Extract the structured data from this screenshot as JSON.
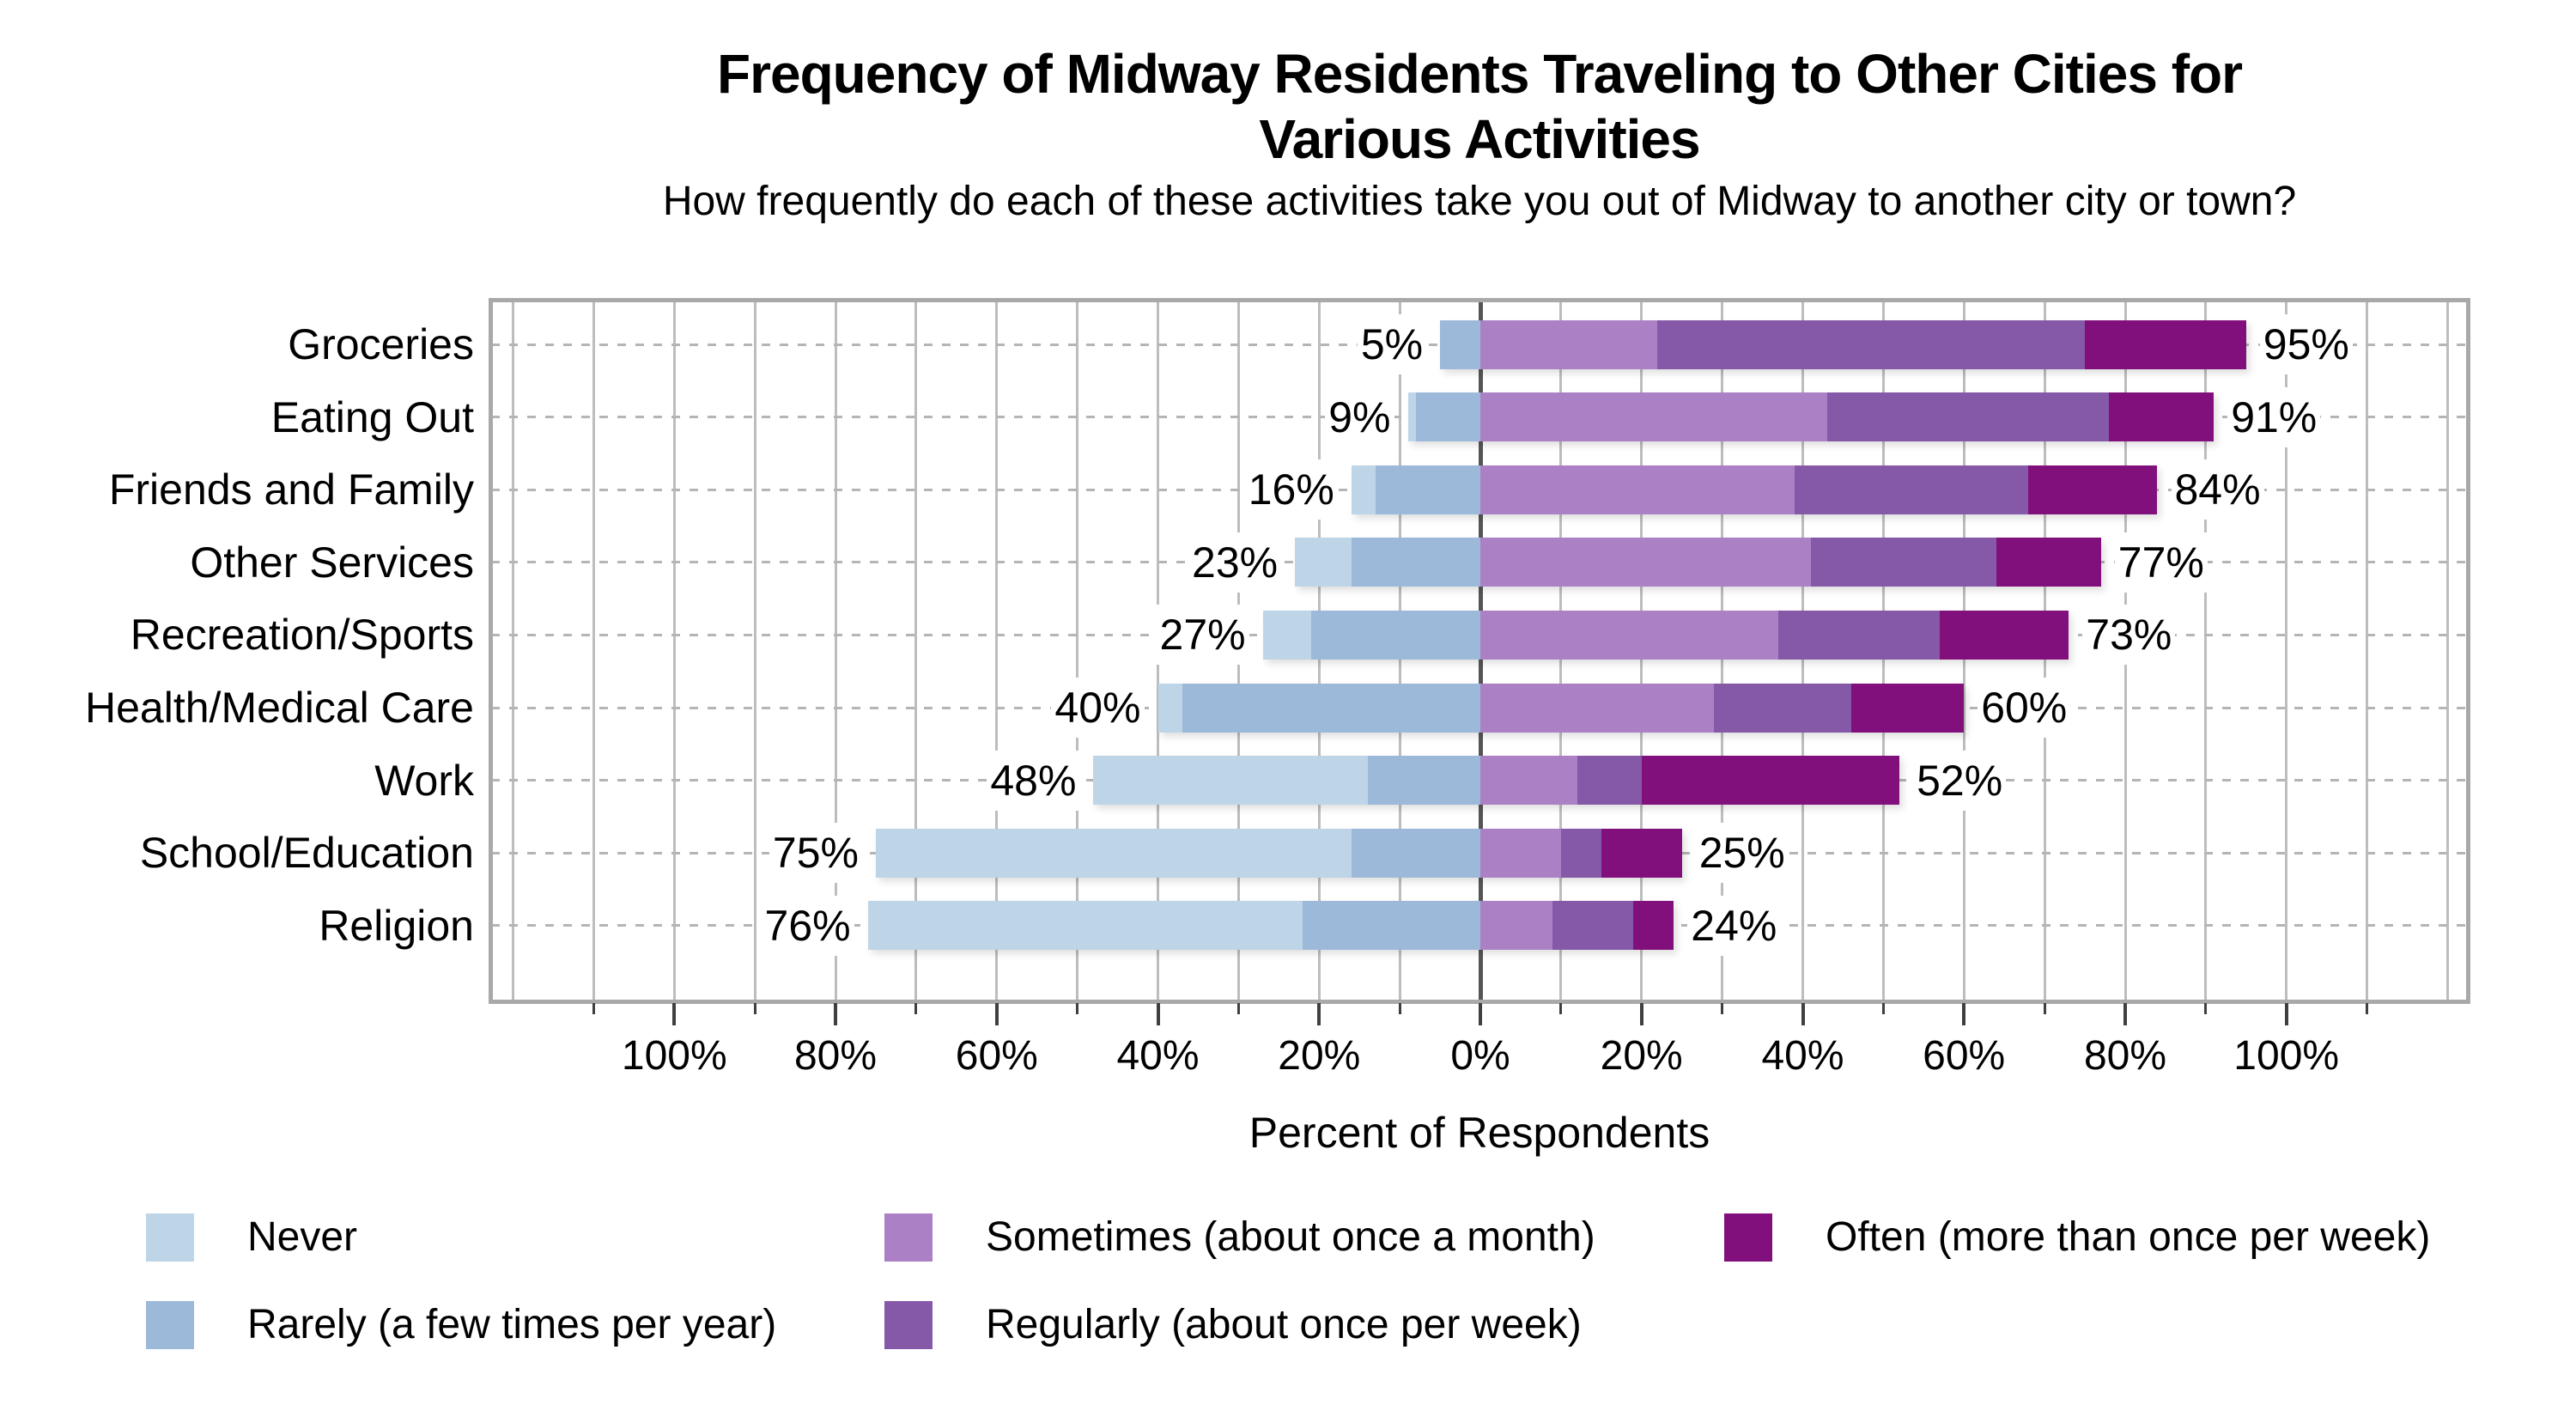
{
  "title": {
    "line1": "Frequency of Midway Residents Traveling to Other Cities for",
    "line2": "Various Activities"
  },
  "subtitle": "How frequently do each of these activities take you out of Midway to another city or town?",
  "x_axis": {
    "label": "Percent of Respondents",
    "tick_labels": [
      "100%",
      "80%",
      "60%",
      "40%",
      "20%",
      "0%",
      "20%",
      "40%",
      "60%",
      "80%",
      "100%"
    ],
    "tick_values": [
      -100,
      -80,
      -60,
      -40,
      -20,
      0,
      20,
      40,
      60,
      80,
      100
    ],
    "minor_tick_step": 10
  },
  "chart_data": {
    "type": "diverging-stacked-bar",
    "orientation": "horizontal",
    "categories": [
      "Groceries",
      "Eating Out",
      "Friends and Family",
      "Other Services",
      "Recreation/Sports",
      "Health/Medical Care",
      "Work",
      "School/Education",
      "Religion"
    ],
    "series": [
      {
        "name": "Never",
        "side": "left",
        "color": "#bed5e8",
        "values": [
          0,
          1,
          3,
          7,
          6,
          3,
          34,
          59,
          54
        ]
      },
      {
        "name": "Rarely (a few times per year)",
        "side": "left",
        "color": "#9cb9da",
        "values": [
          5,
          8,
          13,
          16,
          21,
          37,
          14,
          16,
          22
        ]
      },
      {
        "name": "Sometimes (about once a month)",
        "side": "right",
        "color": "#ac80c4",
        "values": [
          22,
          43,
          39,
          41,
          37,
          29,
          12,
          10,
          9
        ]
      },
      {
        "name": "Regularly (about once per week)",
        "side": "right",
        "color": "#8658a8",
        "values": [
          53,
          35,
          29,
          23,
          20,
          17,
          8,
          5,
          10
        ]
      },
      {
        "name": "Often (more than once per week)",
        "side": "right",
        "color": "#82107c",
        "values": [
          20,
          13,
          16,
          13,
          16,
          14,
          32,
          10,
          5
        ]
      }
    ],
    "left_total_labels": [
      "5%",
      "9%",
      "16%",
      "23%",
      "27%",
      "40%",
      "48%",
      "75%",
      "76%"
    ],
    "right_total_labels": [
      "95%",
      "91%",
      "84%",
      "77%",
      "73%",
      "60%",
      "52%",
      "25%",
      "24%"
    ],
    "left_totals": [
      5,
      9,
      16,
      23,
      27,
      40,
      48,
      75,
      76
    ],
    "right_totals": [
      95,
      91,
      84,
      77,
      73,
      60,
      52,
      25,
      24
    ],
    "xlabel": "Percent of Respondents",
    "ylabel": "",
    "xlim": [
      -122.5,
      122.5
    ],
    "grid": true,
    "legend_position": "bottom",
    "colors": {
      "gridline": "#bdbdbd",
      "zero_line": "#555555",
      "row_gridline_dashed": "#b5b5b5",
      "plot_border": "#a9a9a9",
      "tick": "#3f3f3f",
      "text": "#000000",
      "background": "#ffffff"
    }
  },
  "legend": {
    "items": [
      {
        "label": "Never",
        "color": "#bed5e8"
      },
      {
        "label": "Rarely (a few times per year)",
        "color": "#9cb9da"
      },
      {
        "label": "Sometimes (about once a month)",
        "color": "#ac80c4"
      },
      {
        "label": "Regularly (about once per week)",
        "color": "#8658a8"
      },
      {
        "label": "Often (more than once per week)",
        "color": "#82107c"
      }
    ]
  }
}
